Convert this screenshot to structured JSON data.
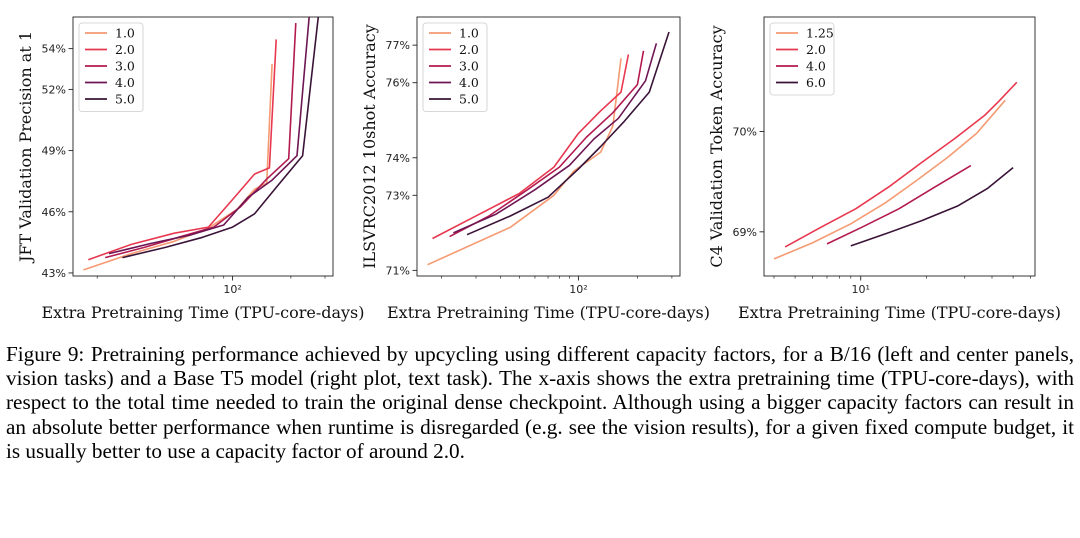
{
  "chart_data": [
    {
      "type": "line",
      "xscale": "log",
      "xlim": [
        15,
        330
      ],
      "ylim": [
        0.4285,
        0.5555
      ],
      "ytick_pos": [
        0.43,
        0.46,
        0.49,
        0.52,
        0.54
      ],
      "yticks": [
        "43%",
        "46%",
        "49%",
        "52%",
        "54%"
      ],
      "xtick_pos": [
        100
      ],
      "xticks": [
        "10²"
      ],
      "xlabel": "Extra Pretraining Time (TPU-core-days)",
      "ylabel": "JFT Validation Precision at 1",
      "legend": "top-left",
      "series": [
        {
          "name": "1.0",
          "color": "#f59a72",
          "x": [
            17,
            30,
            50,
            75,
            105,
            130,
            150,
            160
          ],
          "y": [
            0.4315,
            0.4395,
            0.4455,
            0.452,
            0.461,
            0.471,
            0.474,
            0.5325
          ]
        },
        {
          "name": "2.0",
          "color": "#e8384f",
          "x": [
            18,
            30,
            50,
            75,
            100,
            130,
            155,
            168
          ],
          "y": [
            0.4365,
            0.444,
            0.4495,
            0.4525,
            0.466,
            0.4785,
            0.4815,
            0.5445
          ]
        },
        {
          "name": "3.0",
          "color": "#b21a50",
          "x": [
            22,
            35,
            55,
            80,
            110,
            150,
            195,
            212
          ],
          "y": [
            0.4375,
            0.4425,
            0.448,
            0.4525,
            0.4625,
            0.476,
            0.486,
            0.5525
          ]
        },
        {
          "name": "4.0",
          "color": "#6e1653",
          "x": [
            23,
            38,
            60,
            90,
            120,
            160,
            215,
            250
          ],
          "y": [
            0.4395,
            0.4445,
            0.4485,
            0.4535,
            0.467,
            0.4755,
            0.4875,
            0.558
          ]
        },
        {
          "name": "5.0",
          "color": "#3a1438",
          "x": [
            27,
            45,
            70,
            100,
            130,
            170,
            230,
            280
          ],
          "y": [
            0.4375,
            0.4425,
            0.4475,
            0.4525,
            0.459,
            0.4725,
            0.4875,
            0.5595
          ]
        }
      ]
    },
    {
      "type": "line",
      "xscale": "log",
      "xlim": [
        15,
        330
      ],
      "ylim": [
        0.7085,
        0.7775
      ],
      "ytick_pos": [
        0.71,
        0.73,
        0.74,
        0.76,
        0.77
      ],
      "yticks": [
        "71%",
        "73%",
        "74%",
        "76%",
        "77%"
      ],
      "xtick_pos": [
        100
      ],
      "xticks": [
        "10²"
      ],
      "xlabel": "Extra Pretraining Time (TPU-core-days)",
      "ylabel": "ILSVRC2012 10shot Accuracy",
      "legend": "top-left",
      "series": [
        {
          "name": "1.0",
          "color": "#f59a72",
          "x": [
            17,
            45,
            75,
            95,
            130,
            150,
            165
          ],
          "y": [
            0.7115,
            0.7215,
            0.73,
            0.7365,
            0.7415,
            0.7485,
            0.7665
          ]
        },
        {
          "name": "2.0",
          "color": "#e8384f",
          "x": [
            18,
            30,
            50,
            75,
            100,
            130,
            165,
            180
          ],
          "y": [
            0.7185,
            0.7245,
            0.7305,
            0.7375,
            0.7465,
            0.7525,
            0.7575,
            0.7675
          ]
        },
        {
          "name": "3.0",
          "color": "#b21a50",
          "x": [
            22,
            35,
            55,
            80,
            110,
            150,
            200,
            215
          ],
          "y": [
            0.719,
            0.7245,
            0.7315,
            0.7375,
            0.7455,
            0.752,
            0.7595,
            0.7685
          ]
        },
        {
          "name": "4.0",
          "color": "#6e1653",
          "x": [
            23,
            38,
            60,
            90,
            120,
            160,
            220,
            250
          ],
          "y": [
            0.72,
            0.725,
            0.7315,
            0.738,
            0.745,
            0.7505,
            0.7605,
            0.7705
          ]
        },
        {
          "name": "5.0",
          "color": "#3a1438",
          "x": [
            27,
            45,
            70,
            100,
            130,
            170,
            230,
            290
          ],
          "y": [
            0.7195,
            0.7245,
            0.7295,
            0.737,
            0.743,
            0.7495,
            0.7575,
            0.7735
          ]
        }
      ]
    },
    {
      "type": "line",
      "xscale": "log",
      "xlim": [
        3.6,
        63
      ],
      "ylim": [
        0.6856,
        0.7114
      ],
      "ytick_pos": [
        0.69,
        0.7
      ],
      "yticks": [
        "69%",
        "70%"
      ],
      "xtick_pos": [
        10
      ],
      "xticks": [
        "10¹"
      ],
      "xlabel": "Extra Pretraining Time (TPU-core-days)",
      "ylabel": "C4 Validation Token Accuracy",
      "legend": "top-left",
      "series": [
        {
          "name": "1.25",
          "color": "#f59a72",
          "x": [
            4,
            6,
            9,
            13,
            18,
            25,
            34,
            46
          ],
          "y": [
            0.6873,
            0.6889,
            0.6908,
            0.6929,
            0.6951,
            0.6974,
            0.6998,
            0.7031
          ]
        },
        {
          "name": "2.0",
          "color": "#e8384f",
          "x": [
            4.5,
            6.5,
            9.5,
            13.5,
            19,
            27,
            37,
            43,
            52
          ],
          "y": [
            0.6885,
            0.6904,
            0.6923,
            0.6945,
            0.6969,
            0.6993,
            0.7016,
            0.703,
            0.7049
          ]
        },
        {
          "name": "4.0",
          "color": "#b21a50",
          "x": [
            7,
            10,
            15,
            22,
            32
          ],
          "y": [
            0.6888,
            0.6904,
            0.6923,
            0.6945,
            0.6966
          ]
        },
        {
          "name": "6.0",
          "color": "#3a1438",
          "x": [
            9,
            13,
            19,
            28,
            38,
            50
          ],
          "y": [
            0.6886,
            0.6898,
            0.6911,
            0.6926,
            0.6943,
            0.6964
          ]
        }
      ]
    }
  ],
  "caption": {
    "text": "Figure 9: Pretraining performance achieved by upcycling using different capacity factors, for a B/16 (left and center panels, vision tasks) and a Base T5 model (right plot, text task). The x-axis shows the extra pretraining time (TPU-core-days), with respect to the total time needed to train the original dense checkpoint. Although using a bigger capacity factors can result in an absolute better performance when runtime is disregarded (e.g.  see the vision results), for a given fixed compute budget, it is usually better to use a capacity factor of around 2.0."
  }
}
